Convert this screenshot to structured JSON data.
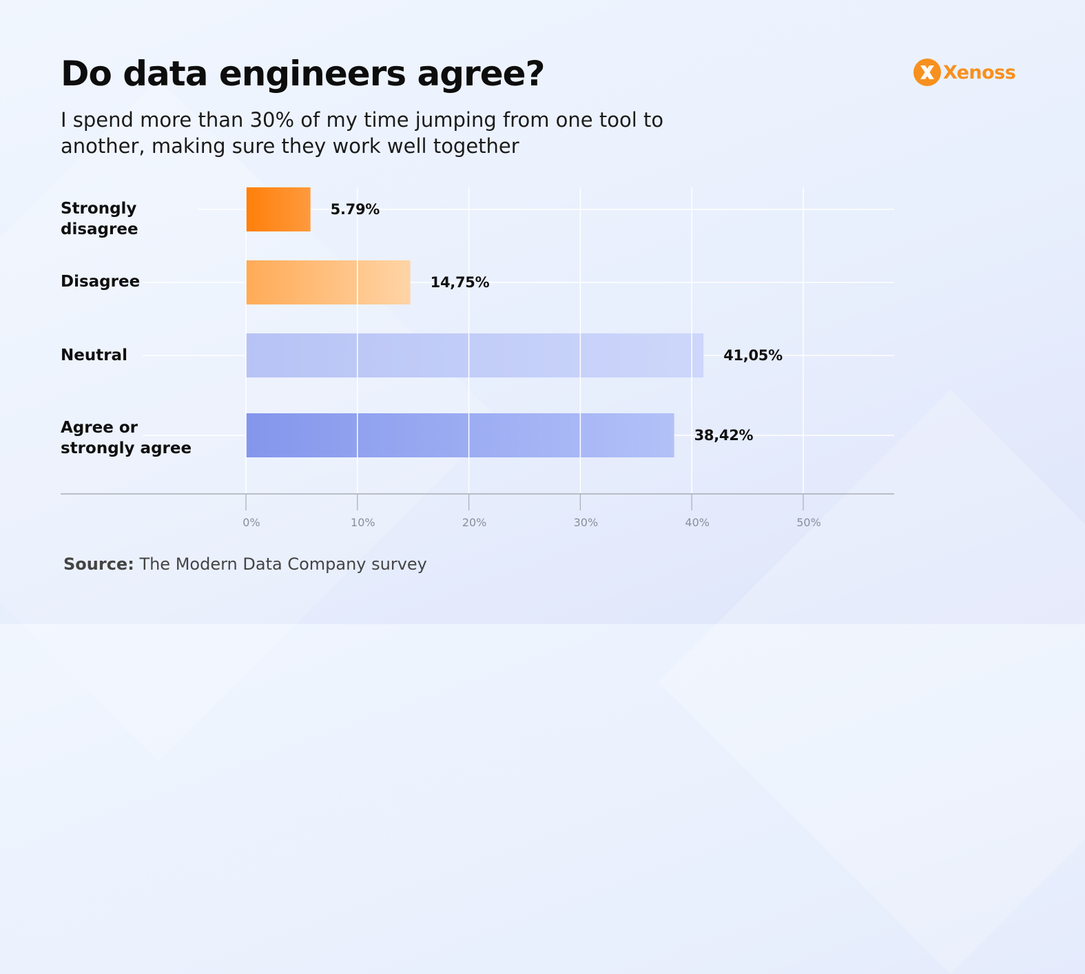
{
  "title": "Do data engineers agree?",
  "subtitle": "I spend more than 30% of my time jumping from one tool to another, making sure they work well together",
  "logo": {
    "text": "Xenoss",
    "icon": "xenoss-x-icon",
    "color": "#f7901e"
  },
  "source": {
    "label": "Source:",
    "text": "The Modern Data Company survey"
  },
  "chart_data": {
    "type": "bar",
    "orientation": "horizontal",
    "categories": [
      "Strongly\ndisagree",
      "Disagree",
      "Neutral",
      "Agree or\nstrongly agree"
    ],
    "values": [
      5.79,
      14.75,
      41.05,
      38.42
    ],
    "value_labels": [
      "5.79%",
      "14,75%",
      "41,05%",
      "38,42%"
    ],
    "xlim": [
      0,
      50
    ],
    "x_ticks": [
      0,
      10,
      20,
      30,
      40,
      50
    ],
    "x_tick_labels": [
      "0%",
      "10%",
      "20%",
      "30%",
      "40%",
      "50%"
    ],
    "grid": true,
    "colors": [
      [
        "#ff7f0a",
        "#ff9a3d"
      ],
      [
        "#ffab57",
        "#ffd4a6"
      ],
      [
        "#b7c3f5",
        "#cdd7fb"
      ],
      [
        "#8496ec",
        "#b3c1f8"
      ]
    ]
  }
}
